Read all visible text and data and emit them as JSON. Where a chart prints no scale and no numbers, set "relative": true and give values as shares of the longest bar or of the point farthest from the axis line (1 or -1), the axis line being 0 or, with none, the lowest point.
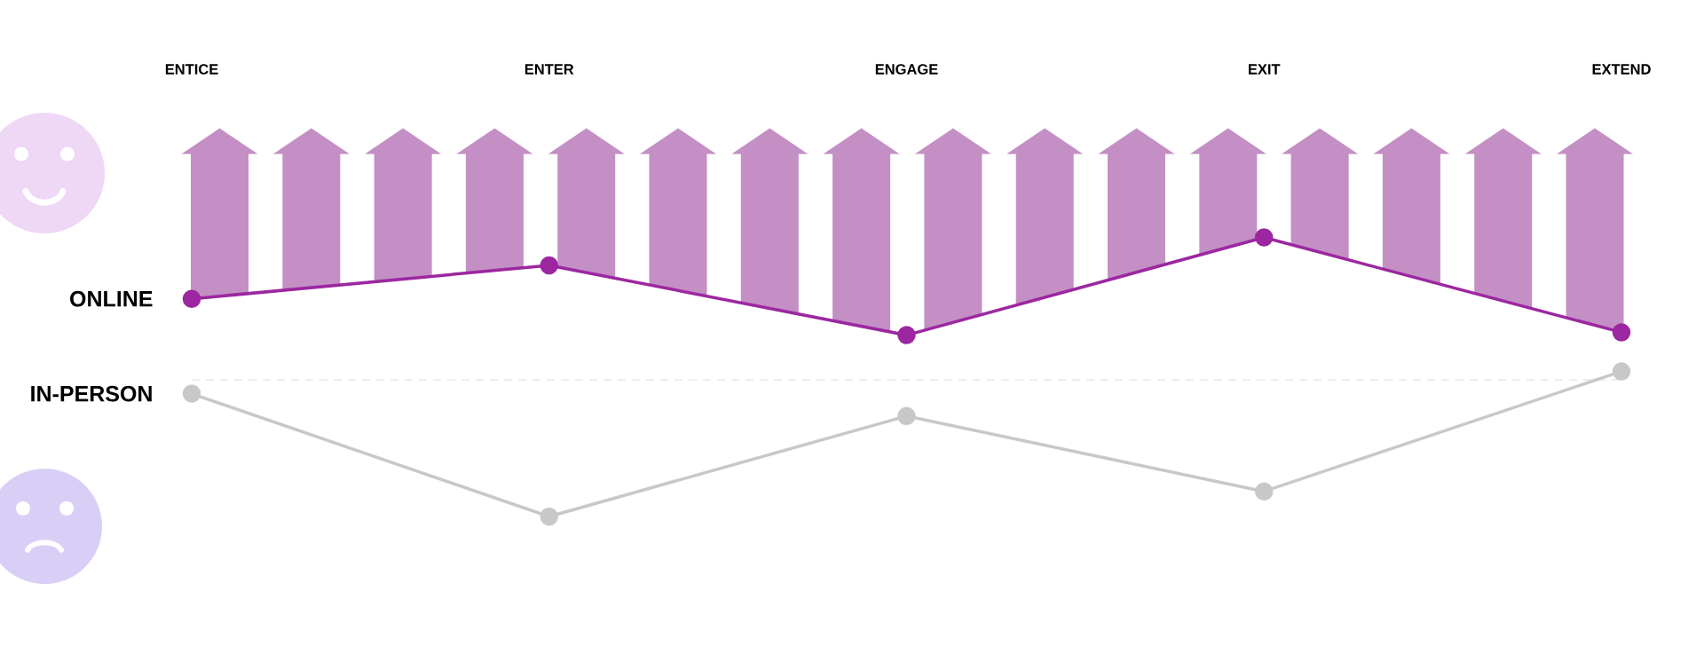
{
  "chart_data": {
    "type": "line",
    "relative": true,
    "marker": "circle",
    "categories": [
      "ENTICE",
      "ENTER",
      "ENGAGE",
      "EXIT",
      "EXTEND"
    ],
    "series": [
      {
        "name": "ONLINE",
        "color": "#9c27a0",
        "values": [
          0.78,
          0.9,
          0.65,
          1.0,
          0.66
        ]
      },
      {
        "name": "IN-PERSON",
        "color": "#c8c8c8",
        "values": [
          0.44,
          0,
          0.36,
          0.09,
          0.52
        ]
      }
    ],
    "ref_lines": [
      {
        "axis": "y",
        "value": 0.49,
        "color": "#dddddd",
        "line_style": "dashed"
      }
    ]
  }
}
